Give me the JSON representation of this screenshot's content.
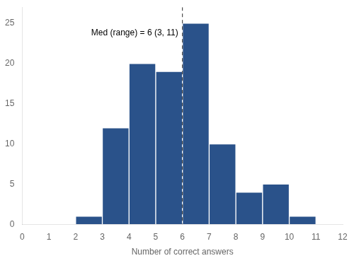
{
  "chart_data": {
    "type": "histogram",
    "bins": [
      0,
      1,
      2,
      3,
      4,
      5,
      6,
      7,
      8,
      9,
      10,
      11,
      12
    ],
    "values": [
      0,
      0,
      1,
      12,
      20,
      19,
      25,
      10,
      4,
      5,
      1,
      0
    ],
    "color": "#2a528a",
    "xlabel": "Number of correct answers",
    "xlim": [
      0,
      12
    ],
    "ylim": [
      0,
      27
    ],
    "xticks": [
      0,
      1,
      2,
      3,
      4,
      5,
      6,
      7,
      8,
      9,
      10,
      11,
      12
    ],
    "yticks": [
      0,
      5,
      10,
      15,
      20,
      25
    ],
    "grid": false,
    "annotations": [
      {
        "text": "Med (range) = 6 (3, 11)"
      }
    ],
    "reference_lines": [
      {
        "x": 6,
        "color": "#2a2a2a",
        "line_style": "dashed"
      }
    ]
  }
}
